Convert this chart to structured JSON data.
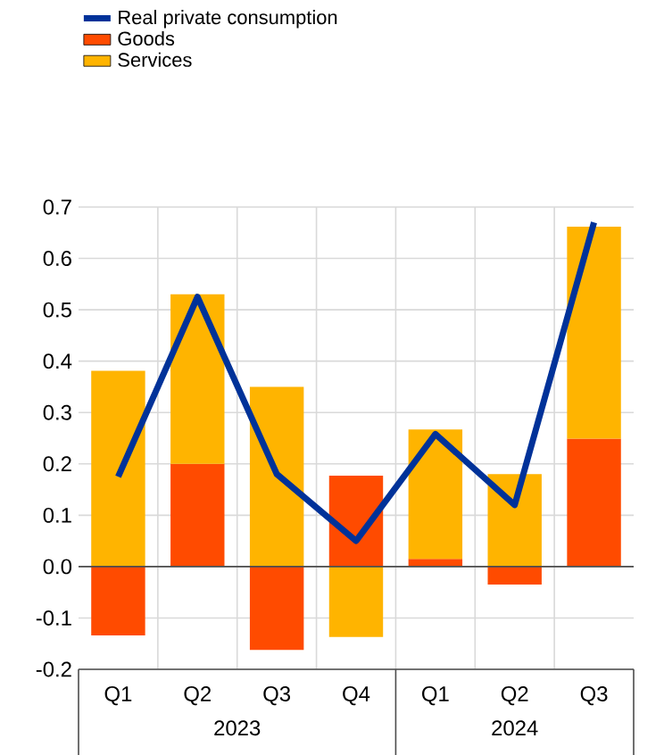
{
  "chart_data": {
    "type": "bar",
    "stacked": true,
    "grid": true,
    "legend": "top left",
    "marker": "none",
    "categories": [
      "Q1",
      "Q2",
      "Q3",
      "Q4",
      "Q1",
      "Q2",
      "Q3"
    ],
    "annotations": [
      "2023",
      "2024"
    ],
    "series": [
      {
        "name": "Real private consumption",
        "type": "line",
        "color": "#003299",
        "values": [
          0.175,
          0.525,
          0.18,
          0.05,
          0.258,
          0.12,
          0.67
        ]
      },
      {
        "name": "Goods",
        "color": "#ff4b00",
        "values": [
          -0.134,
          0.2,
          -0.162,
          0.177,
          0.015,
          -0.035,
          0.249
        ]
      },
      {
        "name": "Services",
        "color": "#ffb400",
        "values": [
          0.381,
          0.33,
          0.35,
          -0.137,
          0.252,
          0.18,
          0.413
        ]
      }
    ],
    "ylim": [
      -0.2,
      0.7
    ],
    "yticks": [
      -0.2,
      -0.1,
      {
        "value": 0,
        "label": "0.0"
      },
      0.1,
      0.2,
      0.3,
      0.4,
      0.5,
      0.6,
      0.7
    ]
  }
}
